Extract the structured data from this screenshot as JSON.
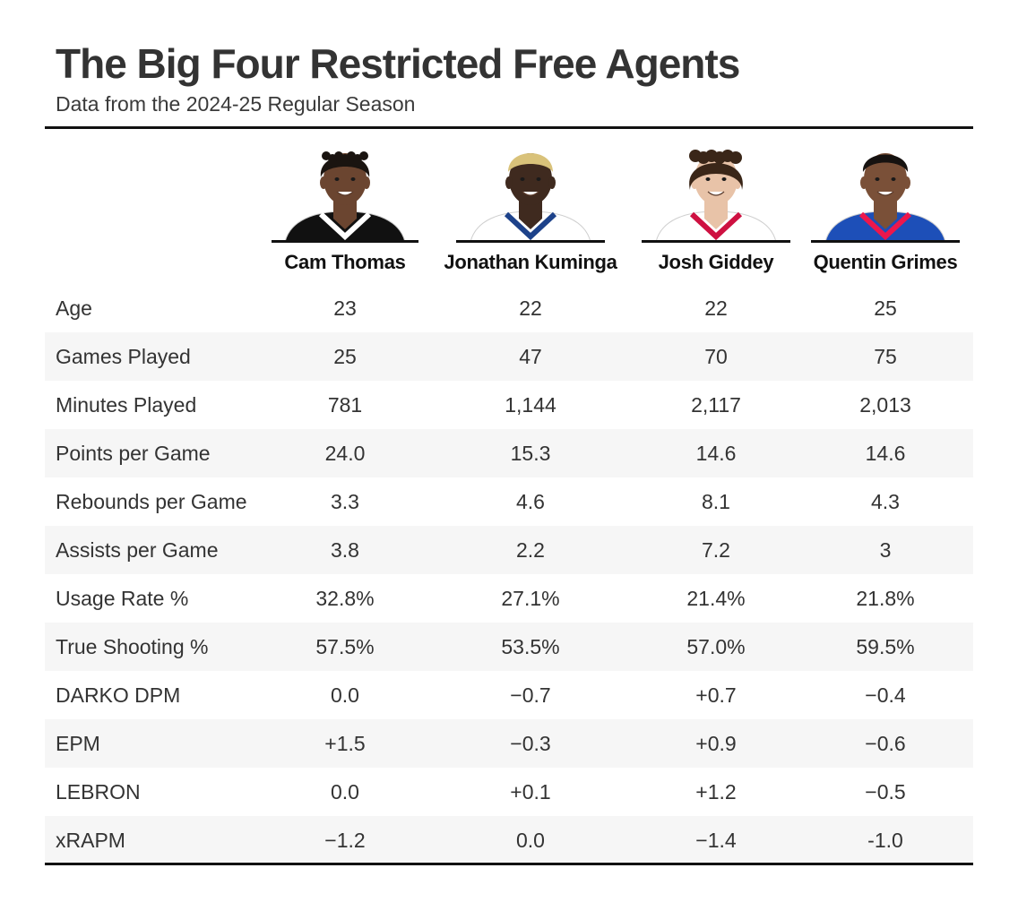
{
  "chart_data": {
    "type": "table",
    "title": "The Big Four Restricted Free Agents",
    "subtitle": "Data from the 2024-25 Regular Season",
    "players": [
      {
        "name": "Cam Thomas",
        "jersey": "#111111",
        "trim": "#ffffff",
        "skin": "#6b4530",
        "hair": "#1a1410",
        "hair_style": "twists"
      },
      {
        "name": "Jonathan Kuminga",
        "jersey": "#ffffff",
        "trim": "#1d428a",
        "skin": "#3f2a1f",
        "hair": "#d9c27a",
        "hair_style": "bleached"
      },
      {
        "name": "Josh Giddey",
        "jersey": "#ffffff",
        "trim": "#ce1141",
        "skin": "#e8c3a8",
        "hair": "#3a2618",
        "hair_style": "curly"
      },
      {
        "name": "Quentin Grimes",
        "jersey": "#1d4fb8",
        "trim": "#ed174c",
        "skin": "#7a5038",
        "hair": "#161210",
        "hair_style": "short"
      }
    ],
    "rows": [
      {
        "label": "Age",
        "values": [
          "23",
          "22",
          "22",
          "25"
        ]
      },
      {
        "label": "Games Played",
        "values": [
          "25",
          "47",
          "70",
          "75"
        ]
      },
      {
        "label": "Minutes Played",
        "values": [
          "781",
          "1,144",
          "2,117",
          "2,013"
        ]
      },
      {
        "label": "Points per Game",
        "values": [
          "24.0",
          "15.3",
          "14.6",
          "14.6"
        ]
      },
      {
        "label": "Rebounds per Game",
        "values": [
          "3.3",
          "4.6",
          "8.1",
          "4.3"
        ]
      },
      {
        "label": "Assists per Game",
        "values": [
          "3.8",
          "2.2",
          "7.2",
          "3"
        ]
      },
      {
        "label": "Usage Rate %",
        "values": [
          "32.8%",
          "27.1%",
          "21.4%",
          "21.8%"
        ]
      },
      {
        "label": "True Shooting %",
        "values": [
          "57.5%",
          "53.5%",
          "57.0%",
          "59.5%"
        ]
      },
      {
        "label": "DARKO DPM",
        "values": [
          "0.0",
          "−0.7",
          "+0.7",
          "−0.4"
        ]
      },
      {
        "label": "EPM",
        "values": [
          "+1.5",
          "−0.3",
          "+0.9",
          "−0.6"
        ]
      },
      {
        "label": "LEBRON",
        "values": [
          "0.0",
          "+0.1",
          "+1.2",
          "−0.5"
        ]
      },
      {
        "label": "xRAPM",
        "values": [
          "−1.2",
          "0.0",
          "−1.4",
          "-1.0"
        ]
      }
    ],
    "row_shading": "alternating",
    "shade_color": "#f6f6f6",
    "rule_color": "#111111"
  }
}
